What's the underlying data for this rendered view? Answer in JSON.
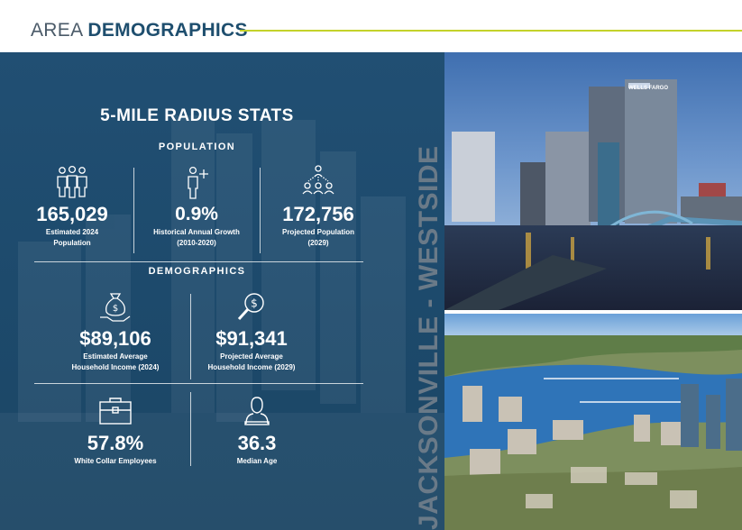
{
  "header": {
    "title_light": "AREA",
    "title_bold": "DEMOGRAPHICS",
    "accent_color": "#c4d22a"
  },
  "panel": {
    "title": "5-MILE RADIUS STATS",
    "population_label": "POPULATION",
    "demographics_label": "DEMOGRAPHICS",
    "side_text": "JACKSONVILLE - WESTSIDE"
  },
  "population": [
    {
      "icon": "people-group-icon",
      "value": "165,029",
      "label_line1": "Estimated 2024",
      "label_line2": "Population"
    },
    {
      "icon": "person-plus-icon",
      "value": "0.9%",
      "label_line1": "Historical Annual Growth",
      "label_line2": "(2010-2020)"
    },
    {
      "icon": "network-people-icon",
      "value": "172,756",
      "label_line1": "Projected Population",
      "label_line2": "(2029)"
    }
  ],
  "income": [
    {
      "icon": "money-bag-hand-icon",
      "value": "$89,106",
      "label_line1": "Estimated Average",
      "label_line2": "Household Income (2024)"
    },
    {
      "icon": "dollar-magnifier-icon",
      "value": "$91,341",
      "label_line1": "Projected Average",
      "label_line2": "Household Income (2029)"
    }
  ],
  "other": [
    {
      "icon": "briefcase-icon",
      "value": "57.8%",
      "label_line1": "White Collar Employees"
    },
    {
      "icon": "person-bust-icon",
      "value": "36.3",
      "label_line1": "Median Age"
    }
  ],
  "photos": {
    "top": {
      "sign_text": "WELLS FARGO"
    }
  },
  "colors": {
    "panel_blue": "#1f4d70",
    "header_blue": "#1e4e6e"
  }
}
